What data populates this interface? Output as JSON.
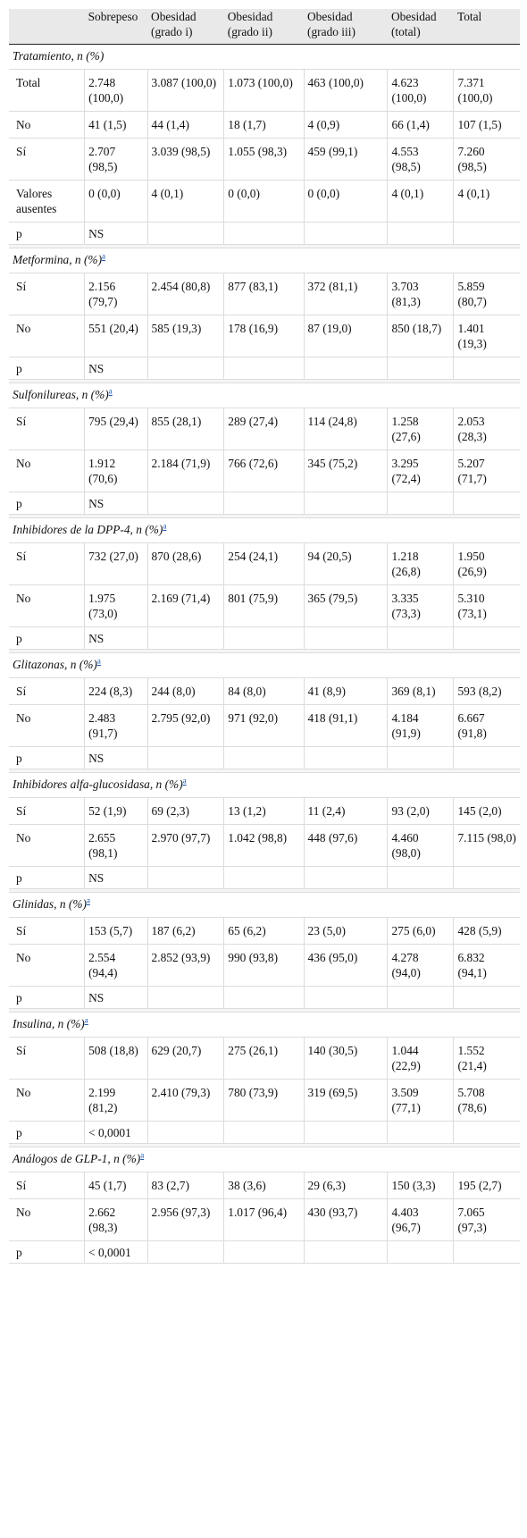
{
  "header": {
    "col0": "",
    "col1": "Sobrepeso",
    "col2": "Obesidad (grado i)",
    "col3": "Obesidad (grado ii)",
    "col4": "Obesidad (grado iii)",
    "col5": "Obesidad (total)",
    "col6": "Total"
  },
  "sections": [
    {
      "title": "Tratamiento, n (%)",
      "footnote": "",
      "rows": [
        {
          "label": "Total",
          "values": [
            "2.748 (100,0)",
            "3.087 (100,0)",
            "1.073 (100,0)",
            "463 (100,0)",
            "4.623 (100,0)",
            "7.371 (100,0)"
          ]
        },
        {
          "label": "No",
          "values": [
            "41 (1,5)",
            "44 (1,4)",
            "18 (1,7)",
            "4 (0,9)",
            "66 (1,4)",
            "107 (1,5)"
          ]
        },
        {
          "label": "Sí",
          "values": [
            "2.707 (98,5)",
            "3.039 (98,5)",
            "1.055 (98,3)",
            "459 (99,1)",
            "4.553 (98,5)",
            "7.260 (98,5)"
          ]
        },
        {
          "label": "Valores ausentes",
          "values": [
            "0 (0,0)",
            "4 (0,1)",
            "0 (0,0)",
            "0 (0,0)",
            "4 (0,1)",
            "4 (0,1)"
          ]
        }
      ],
      "p_label": "p",
      "p_value": "NS"
    },
    {
      "title": "Metformina, n (%)",
      "footnote": "a",
      "rows": [
        {
          "label": "Sí",
          "values": [
            "2.156 (79,7)",
            "2.454 (80,8)",
            "877 (83,1)",
            "372 (81,1)",
            "3.703 (81,3)",
            "5.859 (80,7)"
          ]
        },
        {
          "label": "No",
          "values": [
            "551 (20,4)",
            "585 (19,3)",
            "178 (16,9)",
            "87 (19,0)",
            "850 (18,7)",
            "1.401 (19,3)"
          ]
        }
      ],
      "p_label": "p",
      "p_value": "NS"
    },
    {
      "title": "Sulfonilureas, n (%)",
      "footnote": "a",
      "rows": [
        {
          "label": "Sí",
          "values": [
            "795 (29,4)",
            "855 (28,1)",
            "289 (27,4)",
            "114 (24,8)",
            "1.258 (27,6)",
            "2.053 (28,3)"
          ]
        },
        {
          "label": "No",
          "values": [
            "1.912 (70,6)",
            "2.184 (71,9)",
            "766 (72,6)",
            "345 (75,2)",
            "3.295 (72,4)",
            "5.207 (71,7)"
          ]
        }
      ],
      "p_label": "p",
      "p_value": "NS"
    },
    {
      "title": "Inhibidores de la DPP-4, n (%)",
      "footnote": "a",
      "rows": [
        {
          "label": "Sí",
          "values": [
            "732 (27,0)",
            "870 (28,6)",
            "254 (24,1)",
            "94 (20,5)",
            "1.218 (26,8)",
            "1.950 (26,9)"
          ]
        },
        {
          "label": "No",
          "values": [
            "1.975 (73,0)",
            "2.169 (71,4)",
            "801 (75,9)",
            "365 (79,5)",
            "3.335 (73,3)",
            "5.310 (73,1)"
          ]
        }
      ],
      "p_label": "p",
      "p_value": "NS"
    },
    {
      "title": "Glitazonas, n (%)",
      "footnote": "a",
      "rows": [
        {
          "label": "Sí",
          "values": [
            "224 (8,3)",
            "244 (8,0)",
            "84 (8,0)",
            "41 (8,9)",
            "369 (8,1)",
            "593 (8,2)"
          ]
        },
        {
          "label": "No",
          "values": [
            "2.483 (91,7)",
            "2.795 (92,0)",
            "971 (92,0)",
            "418 (91,1)",
            "4.184 (91,9)",
            "6.667 (91,8)"
          ]
        }
      ],
      "p_label": "p",
      "p_value": "NS"
    },
    {
      "title": "Inhibidores alfa-glucosidasa, n (%)",
      "footnote": "a",
      "rows": [
        {
          "label": "Sí",
          "values": [
            "52 (1,9)",
            "69 (2,3)",
            "13 (1,2)",
            "11 (2,4)",
            "93 (2,0)",
            "145 (2,0)"
          ]
        },
        {
          "label": "No",
          "values": [
            "2.655 (98,1)",
            "2.970 (97,7)",
            "1.042 (98,8)",
            "448 (97,6)",
            "4.460 (98,0)",
            "7.115 (98,0)"
          ]
        }
      ],
      "p_label": "p",
      "p_value": "NS"
    },
    {
      "title": "Glinidas, n (%)",
      "footnote": "a",
      "rows": [
        {
          "label": "Sí",
          "values": [
            "153 (5,7)",
            "187 (6,2)",
            "65 (6,2)",
            "23 (5,0)",
            "275 (6,0)",
            "428 (5,9)"
          ]
        },
        {
          "label": "No",
          "values": [
            "2.554 (94,4)",
            "2.852 (93,9)",
            "990 (93,8)",
            "436 (95,0)",
            "4.278 (94,0)",
            "6.832 (94,1)"
          ]
        }
      ],
      "p_label": "p",
      "p_value": "NS"
    },
    {
      "title": "Insulina, n (%)",
      "footnote": "a",
      "rows": [
        {
          "label": "Sí",
          "values": [
            "508 (18,8)",
            "629 (20,7)",
            "275 (26,1)",
            "140 (30,5)",
            "1.044 (22,9)",
            "1.552 (21,4)"
          ]
        },
        {
          "label": "No",
          "values": [
            "2.199 (81,2)",
            "2.410 (79,3)",
            "780 (73,9)",
            "319 (69,5)",
            "3.509 (77,1)",
            "5.708 (78,6)"
          ]
        }
      ],
      "p_label": "p",
      "p_value": "< 0,0001"
    },
    {
      "title": "Análogos de GLP-1, n (%)",
      "footnote": "a",
      "rows": [
        {
          "label": "Sí",
          "values": [
            "45 (1,7)",
            "83 (2,7)",
            "38 (3,6)",
            "29 (6,3)",
            "150 (3,3)",
            "195 (2,7)"
          ]
        },
        {
          "label": "No",
          "values": [
            "2.662 (98,3)",
            "2.956 (97,3)",
            "1.017 (96,4)",
            "430 (93,7)",
            "4.403 (96,7)",
            "7.065 (97,3)"
          ]
        }
      ],
      "p_label": "p",
      "p_value": "< 0,0001"
    }
  ]
}
